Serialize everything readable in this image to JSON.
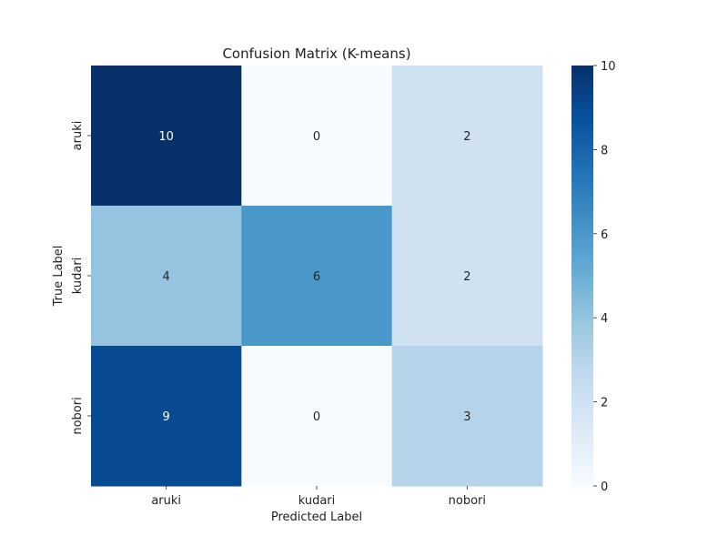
{
  "chart_data": {
    "type": "heatmap",
    "title": "Confusion Matrix (K-means)",
    "xlabel": "Predicted Label",
    "ylabel": "True Label",
    "x_categories": [
      "aruki",
      "kudari",
      "nobori"
    ],
    "y_categories": [
      "aruki",
      "kudari",
      "nobori"
    ],
    "values": [
      [
        10,
        0,
        2
      ],
      [
        4,
        6,
        2
      ],
      [
        9,
        0,
        3
      ]
    ],
    "annotations": true,
    "colormap": "Blues",
    "colorbar": {
      "range": [
        0,
        10
      ],
      "ticks": [
        0,
        2,
        4,
        6,
        8,
        10
      ]
    },
    "grid": false
  },
  "colors": {
    "blues_scale": [
      "#f7fbff",
      "#deebf7",
      "#c6dbef",
      "#9ecae1",
      "#6baed6",
      "#4292c6",
      "#2171b5",
      "#08519c",
      "#08306b"
    ],
    "text_light": "#ffffff",
    "text_dark": "#262626"
  }
}
